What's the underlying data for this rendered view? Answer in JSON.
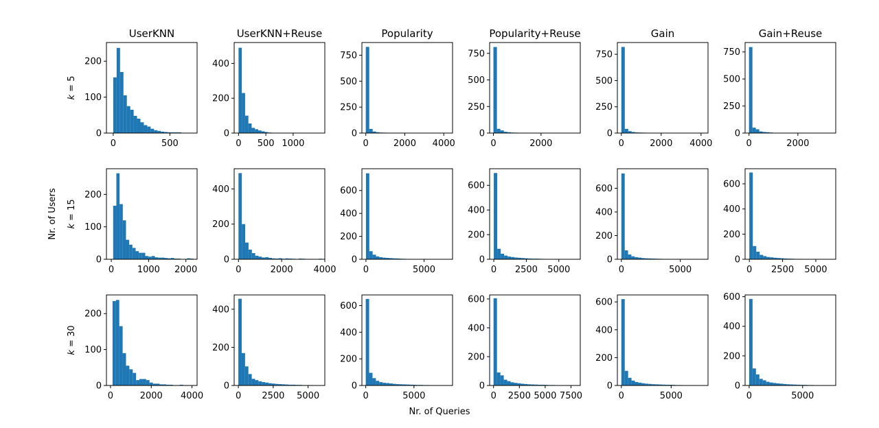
{
  "figure": {
    "xlabel": "Nr. of Queries",
    "ylabel": "Nr. of Users",
    "columns": [
      "UserKNN",
      "UserKNN+Reuse",
      "Popularity",
      "Popularity+Reuse",
      "Gain",
      "Gain+Reuse"
    ],
    "rows": [
      "k = 5",
      "k = 15",
      "k = 30"
    ],
    "bar_color": "#1f77b4"
  },
  "chart_data": [
    {
      "type": "bar",
      "row": "k = 5",
      "column": "UserKNN",
      "xlim": [
        -60,
        740
      ],
      "ylim": [
        0,
        252
      ],
      "xticks": [
        0,
        500
      ],
      "yticks": [
        0,
        100,
        200
      ],
      "bin_start": 0,
      "bin_width": 30,
      "values": [
        155,
        237,
        170,
        105,
        75,
        65,
        48,
        40,
        30,
        22,
        18,
        12,
        8,
        6,
        4,
        3,
        2,
        2,
        2,
        2,
        1,
        1,
        1,
        0,
        0
      ]
    },
    {
      "type": "bar",
      "row": "k = 5",
      "column": "UserKNN+Reuse",
      "xlim": [
        -80,
        1580
      ],
      "ylim": [
        0,
        520
      ],
      "xticks": [
        0,
        500,
        1000
      ],
      "yticks": [
        0,
        200,
        400
      ],
      "bin_start": 0,
      "bin_width": 60,
      "values": [
        490,
        230,
        100,
        55,
        30,
        22,
        15,
        10,
        6,
        3,
        2,
        1,
        1,
        1,
        0,
        0,
        0,
        0,
        0,
        0,
        0,
        0,
        0,
        0,
        0
      ]
    },
    {
      "type": "bar",
      "row": "k = 5",
      "column": "Popularity",
      "xlim": [
        -200,
        4450
      ],
      "ylim": [
        0,
        872
      ],
      "xticks": [
        0,
        2000,
        4000
      ],
      "yticks": [
        0,
        250,
        500,
        750
      ],
      "bin_start": 0,
      "bin_width": 176,
      "values": [
        830,
        40,
        15,
        8,
        5,
        4,
        3,
        2,
        1,
        1,
        1,
        1,
        1,
        1,
        1,
        1,
        1,
        1,
        1,
        3,
        1,
        1,
        1,
        1,
        0
      ]
    },
    {
      "type": "bar",
      "row": "k = 5",
      "column": "Popularity+Reuse",
      "xlim": [
        -160,
        3650
      ],
      "ylim": [
        0,
        852
      ],
      "xticks": [
        0,
        2000
      ],
      "yticks": [
        0,
        250,
        500,
        750
      ],
      "bin_start": 0,
      "bin_width": 146,
      "values": [
        810,
        40,
        25,
        12,
        8,
        5,
        4,
        3,
        2,
        1,
        1,
        1,
        1,
        1,
        1,
        1,
        1,
        1,
        2,
        1,
        1,
        1,
        0,
        0,
        0
      ]
    },
    {
      "type": "bar",
      "row": "k = 5",
      "column": "Gain",
      "xlim": [
        -200,
        4350
      ],
      "ylim": [
        0,
        862
      ],
      "xticks": [
        0,
        2000,
        4000
      ],
      "yticks": [
        0,
        250,
        500,
        750
      ],
      "bin_start": 0,
      "bin_width": 172,
      "values": [
        820,
        40,
        18,
        10,
        6,
        5,
        4,
        3,
        2,
        1,
        1,
        1,
        1,
        1,
        1,
        1,
        1,
        1,
        2,
        1,
        1,
        1,
        0,
        0,
        0
      ]
    },
    {
      "type": "bar",
      "row": "k = 5",
      "column": "Gain+Reuse",
      "xlim": [
        -160,
        3550
      ],
      "ylim": [
        0,
        837
      ],
      "xticks": [
        0,
        2000
      ],
      "yticks": [
        0,
        250,
        500,
        750
      ],
      "bin_start": 0,
      "bin_width": 140,
      "values": [
        795,
        50,
        35,
        15,
        10,
        8,
        5,
        3,
        2,
        1,
        1,
        1,
        1,
        1,
        1,
        1,
        1,
        1,
        1,
        1,
        0,
        0,
        0,
        0,
        0
      ]
    },
    {
      "type": "bar",
      "row": "k = 15",
      "column": "UserKNN",
      "xlim": [
        -130,
        2300
      ],
      "ylim": [
        0,
        279
      ],
      "xticks": [
        0,
        1000,
        2000
      ],
      "yticks": [
        0,
        100,
        200
      ],
      "bin_start": 50,
      "bin_width": 86,
      "values": [
        165,
        265,
        170,
        120,
        60,
        45,
        35,
        25,
        20,
        20,
        10,
        8,
        10,
        6,
        5,
        5,
        4,
        3,
        4,
        2,
        2,
        1,
        1,
        3,
        2
      ]
    },
    {
      "type": "bar",
      "row": "k = 15",
      "column": "UserKNN+Reuse",
      "xlim": [
        -200,
        4000
      ],
      "ylim": [
        0,
        515
      ],
      "xticks": [
        0,
        2000,
        4000
      ],
      "yticks": [
        0,
        200,
        400
      ],
      "bin_start": 0,
      "bin_width": 155,
      "values": [
        490,
        200,
        95,
        55,
        35,
        20,
        15,
        10,
        12,
        8,
        5,
        4,
        6,
        3,
        5,
        4,
        3,
        2,
        4,
        3,
        2,
        2,
        1,
        1,
        3
      ]
    },
    {
      "type": "bar",
      "row": "k = 15",
      "column": "Popularity",
      "xlim": [
        -350,
        7450
      ],
      "ylim": [
        0,
        790
      ],
      "xticks": [
        0,
        5000
      ],
      "yticks": [
        0,
        200,
        400,
        600
      ],
      "bin_start": 0,
      "bin_width": 287,
      "values": [
        750,
        70,
        40,
        25,
        18,
        14,
        12,
        10,
        8,
        7,
        5,
        4,
        3,
        3,
        2,
        2,
        2,
        1,
        1,
        1,
        1,
        1,
        1,
        1,
        0
      ]
    },
    {
      "type": "bar",
      "row": "k = 15",
      "column": "Popularity+Reuse",
      "xlim": [
        -320,
        6650
      ],
      "ylim": [
        0,
        735
      ],
      "xticks": [
        0,
        2500,
        5000
      ],
      "yticks": [
        0,
        200,
        400,
        600
      ],
      "bin_start": 0,
      "bin_width": 265,
      "values": [
        700,
        85,
        45,
        30,
        22,
        18,
        14,
        12,
        10,
        8,
        6,
        5,
        5,
        4,
        3,
        2,
        2,
        2,
        1,
        1,
        1,
        1,
        1,
        1,
        0
      ]
    },
    {
      "type": "bar",
      "row": "k = 15",
      "column": "Gain",
      "xlim": [
        -340,
        7350
      ],
      "ylim": [
        0,
        765
      ],
      "xticks": [
        0,
        5000
      ],
      "yticks": [
        0,
        200,
        400,
        600
      ],
      "bin_start": 0,
      "bin_width": 283,
      "values": [
        725,
        75,
        40,
        25,
        18,
        14,
        10,
        8,
        7,
        6,
        5,
        4,
        3,
        3,
        2,
        2,
        2,
        1,
        1,
        1,
        1,
        1,
        1,
        1,
        0
      ]
    },
    {
      "type": "bar",
      "row": "k = 15",
      "column": "Gain+Reuse",
      "xlim": [
        -320,
        6500
      ],
      "ylim": [
        0,
        720
      ],
      "xticks": [
        0,
        2500,
        5000
      ],
      "yticks": [
        0,
        200,
        400,
        600
      ],
      "bin_start": 0,
      "bin_width": 260,
      "values": [
        690,
        105,
        60,
        35,
        25,
        18,
        15,
        12,
        10,
        8,
        6,
        5,
        4,
        3,
        3,
        2,
        2,
        1,
        1,
        1,
        1,
        1,
        1,
        1,
        0
      ]
    },
    {
      "type": "bar",
      "row": "k = 30",
      "column": "UserKNN",
      "xlim": [
        -200,
        4250
      ],
      "ylim": [
        0,
        252
      ],
      "xticks": [
        0,
        2000,
        4000
      ],
      "yticks": [
        0,
        100,
        200
      ],
      "bin_start": 100,
      "bin_width": 165,
      "values": [
        235,
        238,
        165,
        90,
        55,
        45,
        35,
        15,
        18,
        18,
        15,
        8,
        5,
        5,
        3,
        3,
        2,
        2,
        1,
        1,
        2,
        1,
        1,
        1,
        0
      ]
    },
    {
      "type": "bar",
      "row": "k = 30",
      "column": "UserKNN+Reuse",
      "xlim": [
        -300,
        6200
      ],
      "ylim": [
        0,
        475
      ],
      "xticks": [
        0,
        2500,
        5000
      ],
      "yticks": [
        0,
        200,
        400
      ],
      "bin_start": 0,
      "bin_width": 240,
      "values": [
        455,
        170,
        100,
        60,
        35,
        28,
        22,
        18,
        15,
        12,
        10,
        8,
        7,
        6,
        5,
        4,
        4,
        3,
        3,
        2,
        2,
        2,
        1,
        1,
        1
      ]
    },
    {
      "type": "bar",
      "row": "k = 30",
      "column": "Popularity",
      "xlim": [
        -400,
        9000
      ],
      "ylim": [
        0,
        680
      ],
      "xticks": [
        0,
        5000
      ],
      "yticks": [
        0,
        200,
        400,
        600
      ],
      "bin_start": 0,
      "bin_width": 350,
      "values": [
        650,
        95,
        55,
        35,
        25,
        20,
        18,
        15,
        12,
        10,
        9,
        8,
        7,
        6,
        5,
        4,
        4,
        3,
        3,
        2,
        2,
        2,
        1,
        1,
        1
      ]
    },
    {
      "type": "bar",
      "row": "k = 30",
      "column": "Popularity+Reuse",
      "xlim": [
        -380,
        8400
      ],
      "ylim": [
        0,
        628
      ],
      "xticks": [
        0,
        2500,
        5000,
        7500
      ],
      "yticks": [
        0,
        200,
        400,
        600
      ],
      "bin_start": 0,
      "bin_width": 330,
      "values": [
        605,
        90,
        70,
        40,
        30,
        22,
        18,
        15,
        12,
        10,
        8,
        7,
        6,
        5,
        5,
        4,
        3,
        3,
        2,
        2,
        2,
        1,
        1,
        1,
        1
      ]
    },
    {
      "type": "bar",
      "row": "k = 30",
      "column": "Gain",
      "xlim": [
        -400,
        8700
      ],
      "ylim": [
        0,
        650
      ],
      "xticks": [
        0,
        5000
      ],
      "yticks": [
        0,
        200,
        400,
        600
      ],
      "bin_start": 0,
      "bin_width": 340,
      "values": [
        620,
        105,
        55,
        35,
        25,
        20,
        16,
        13,
        11,
        9,
        8,
        7,
        6,
        5,
        5,
        4,
        3,
        3,
        2,
        2,
        2,
        1,
        1,
        1,
        1
      ]
    },
    {
      "type": "bar",
      "row": "k = 30",
      "column": "Gain+Reuse",
      "xlim": [
        -380,
        8100
      ],
      "ylim": [
        0,
        612
      ],
      "xticks": [
        0,
        5000
      ],
      "yticks": [
        0,
        200,
        400,
        600
      ],
      "bin_start": 0,
      "bin_width": 318,
      "values": [
        585,
        115,
        75,
        45,
        35,
        25,
        20,
        17,
        14,
        12,
        10,
        8,
        7,
        6,
        5,
        4,
        4,
        3,
        3,
        2,
        2,
        1,
        1,
        1,
        1
      ]
    }
  ]
}
